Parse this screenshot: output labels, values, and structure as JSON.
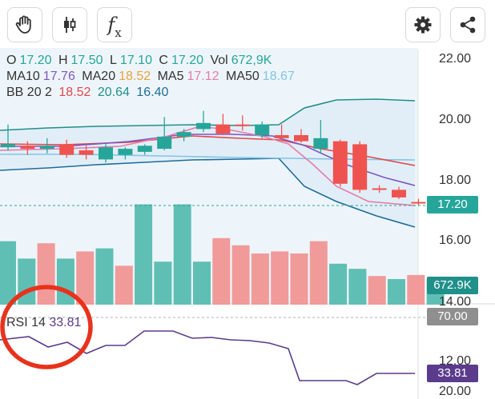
{
  "toolbar": {
    "buttons": [
      {
        "name": "hand-tool-button",
        "icon": "hand-icon"
      },
      {
        "name": "chart-type-button",
        "icon": "candlestick-icon"
      },
      {
        "name": "indicators-button",
        "icon": "fx-icon"
      },
      {
        "name": "settings-button",
        "icon": "gear-icon"
      },
      {
        "name": "share-button",
        "icon": "share-icon"
      }
    ],
    "fx_label": "f",
    "fx_sub": "x"
  },
  "ohlc": {
    "o_label": "O",
    "o": "17.20",
    "h_label": "H",
    "h": "17.50",
    "l_label": "L",
    "l": "17.10",
    "c_label": "C",
    "c": "17.20",
    "vol_label": "Vol",
    "vol": "672,9K"
  },
  "ma": {
    "ma10_label": "MA10",
    "ma10": "17.76",
    "ma20_label": "MA20",
    "ma20": "18.52",
    "ma5_label": "MA5",
    "ma5": "17.12",
    "ma50_label": "MA50",
    "ma50": "18.67"
  },
  "bb": {
    "label": "BB 20 2",
    "upper": "18.52",
    "mid": "20.64",
    "lower": "16.40"
  },
  "rsi": {
    "label": "RSI 14",
    "value": "33.81"
  },
  "axis": {
    "price_ticks": [
      "22.00",
      "20.00",
      "18.00",
      "16.00",
      "14.00"
    ],
    "rsi_ticks": [
      "12.00",
      "20.00"
    ]
  },
  "badges": {
    "price": "17.20",
    "volume": "672.9K",
    "rsi_level": "70.00",
    "rsi_value": "33.81"
  },
  "colors": {
    "up": "#26a69a",
    "down": "#ef5350",
    "vol_up": "#5fbfb4",
    "vol_down": "#f19a9a",
    "ma10": "#7e57c2",
    "ma20": "#e9a23b",
    "ma5": "#e57ca8",
    "ma50": "#81c5e6",
    "bb_upper": "#e04848",
    "bb_mid": "#20908a",
    "bb_lower": "#1e6c9c",
    "rsi_line": "#5a3b8c",
    "highlight_circle": "#e8321c"
  },
  "chart_data": {
    "type": "candlestick",
    "price_axis_range": [
      14.0,
      22.5
    ],
    "candles": [
      {
        "o": 19.1,
        "h": 19.85,
        "l": 19.0,
        "c": 19.2
      },
      {
        "o": 19.15,
        "h": 19.3,
        "l": 18.85,
        "c": 19.05
      },
      {
        "o": 19.05,
        "h": 19.4,
        "l": 18.9,
        "c": 19.15
      },
      {
        "o": 19.2,
        "h": 19.35,
        "l": 18.75,
        "c": 18.85
      },
      {
        "o": 19.0,
        "h": 19.15,
        "l": 18.7,
        "c": 18.85
      },
      {
        "o": 18.7,
        "h": 19.2,
        "l": 18.6,
        "c": 19.1
      },
      {
        "o": 18.85,
        "h": 19.1,
        "l": 18.7,
        "c": 19.05
      },
      {
        "o": 18.95,
        "h": 19.2,
        "l": 18.85,
        "c": 19.15
      },
      {
        "o": 19.05,
        "h": 20.1,
        "l": 19.0,
        "c": 19.45
      },
      {
        "o": 19.45,
        "h": 19.7,
        "l": 19.3,
        "c": 19.6
      },
      {
        "o": 19.7,
        "h": 20.3,
        "l": 19.6,
        "c": 19.9
      },
      {
        "o": 19.85,
        "h": 20.2,
        "l": 19.5,
        "c": 19.55
      },
      {
        "o": 19.85,
        "h": 20.15,
        "l": 19.65,
        "c": 19.8
      },
      {
        "o": 19.5,
        "h": 19.95,
        "l": 19.4,
        "c": 19.85
      },
      {
        "o": 19.5,
        "h": 19.85,
        "l": 19.3,
        "c": 19.4
      },
      {
        "o": 19.5,
        "h": 19.7,
        "l": 19.25,
        "c": 19.3
      },
      {
        "o": 19.05,
        "h": 20.0,
        "l": 18.9,
        "c": 19.4
      },
      {
        "o": 19.3,
        "h": 19.35,
        "l": 17.8,
        "c": 17.9
      },
      {
        "o": 19.2,
        "h": 19.3,
        "l": 17.6,
        "c": 17.7
      },
      {
        "o": 17.75,
        "h": 17.85,
        "l": 17.6,
        "c": 17.7
      },
      {
        "o": 17.7,
        "h": 17.8,
        "l": 17.4,
        "c": 17.45
      },
      {
        "o": 17.3,
        "h": 17.4,
        "l": 17.2,
        "c": 17.25
      },
      {
        "o": 17.2,
        "h": 17.5,
        "l": 17.1,
        "c": 17.2
      }
    ],
    "volume_relative": [
      0.62,
      0.45,
      0.6,
      0.45,
      0.52,
      0.55,
      0.38,
      0.98,
      0.42,
      0.98,
      0.42,
      0.65,
      0.58,
      0.5,
      0.52,
      0.5,
      0.62,
      0.4,
      0.35,
      0.28,
      0.25,
      0.29,
      0.25
    ],
    "volume_up": [
      true,
      true,
      false,
      true,
      false,
      true,
      false,
      true,
      true,
      true,
      true,
      false,
      false,
      false,
      false,
      false,
      false,
      true,
      true,
      false,
      true,
      false,
      true
    ]
  }
}
